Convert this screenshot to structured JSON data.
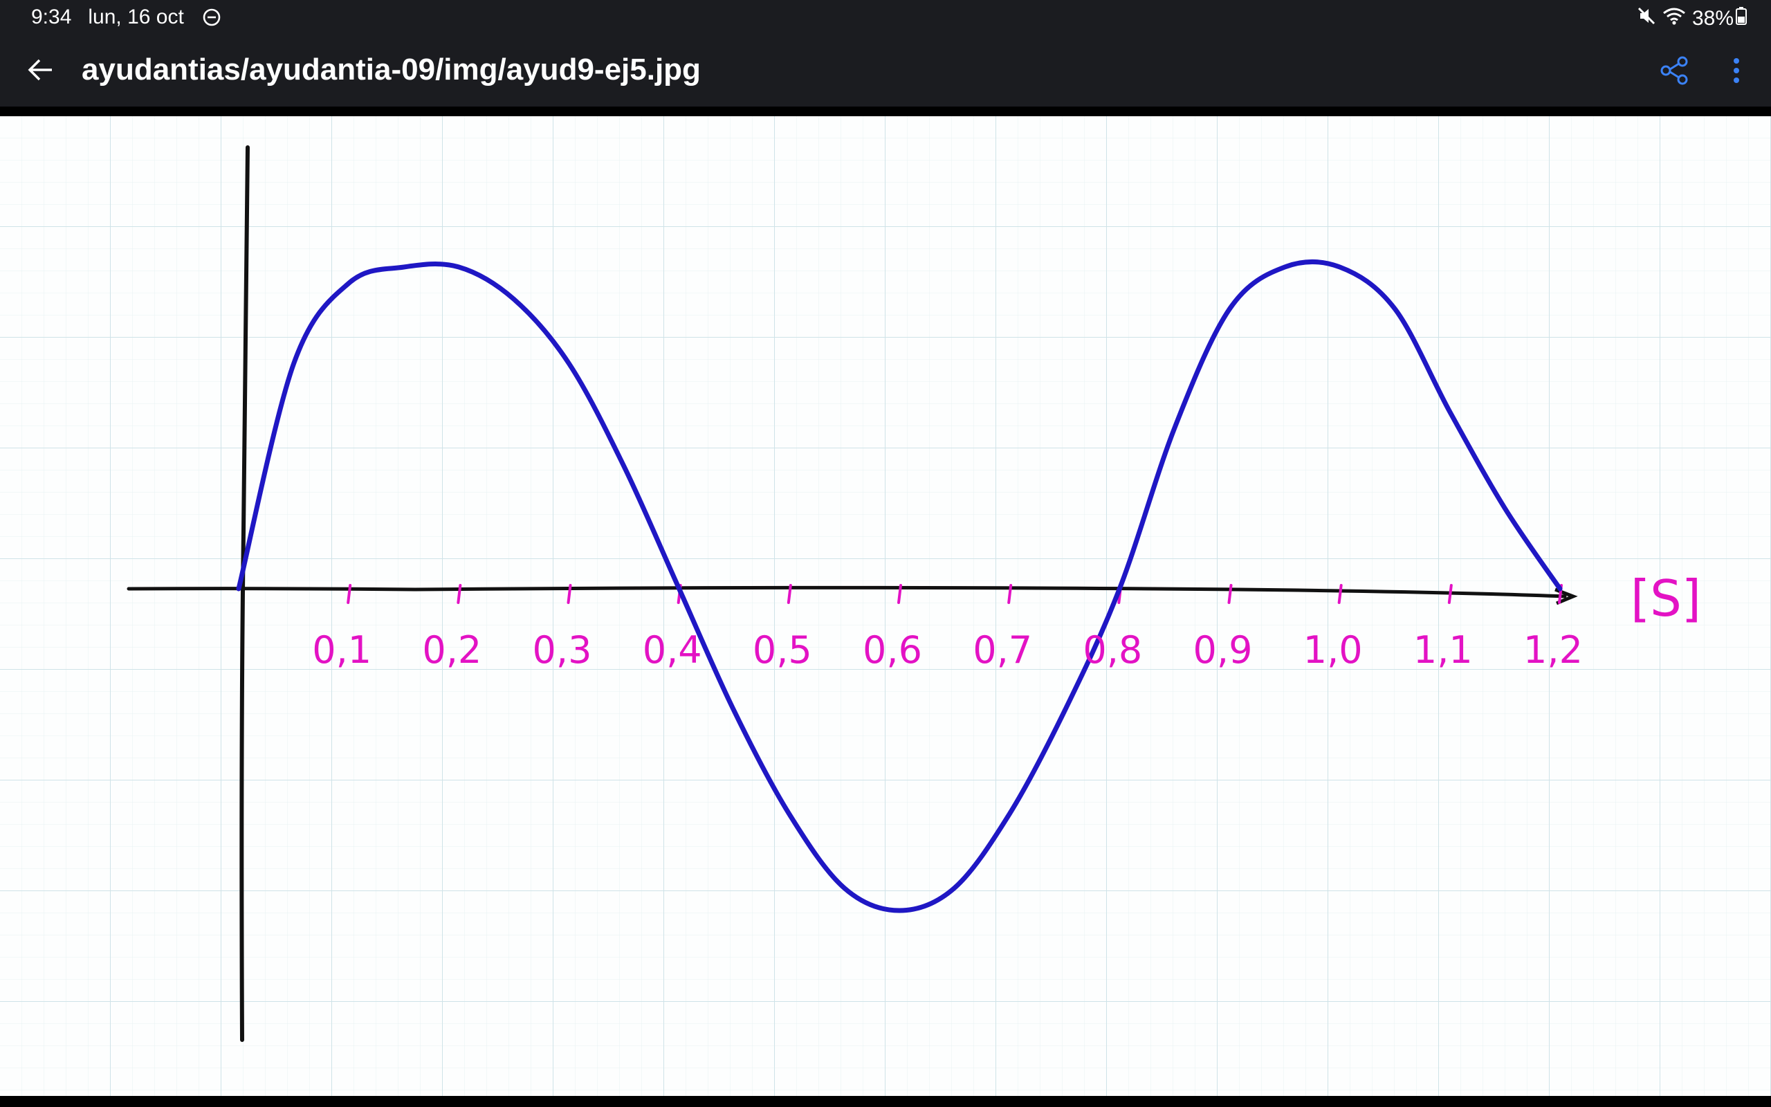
{
  "status_bar": {
    "time": "9:34",
    "date": "lun, 16 oct",
    "battery": "38%",
    "icons": [
      "do-not-disturb-icon",
      "mute-icon",
      "wifi-icon",
      "battery-icon"
    ]
  },
  "app_bar": {
    "title": "ayudantias/ayudantia-09/img/ayud9-ej5.jpg",
    "icons": [
      "back-arrow-icon",
      "share-icon",
      "more-vert-icon"
    ]
  },
  "colors": {
    "bar_background": "#1b1c20",
    "accent": "#3b82f6",
    "grid_paper": "#fdfefe",
    "grid_lines": "#d8e8ec",
    "axis": "#111111",
    "curve": "#1f17c4",
    "labels": "#e312c4"
  },
  "chart_data": {
    "type": "line",
    "title": "",
    "xlabel": "[S]",
    "ylabel": "",
    "xlim": [
      0,
      1.2
    ],
    "x_tick_labels": [
      "0,1",
      "0,2",
      "0,3",
      "0,4",
      "0,5",
      "0,6",
      "0,7",
      "0,8",
      "0,9",
      "1,0",
      "1,1",
      "1,2"
    ],
    "x_ticks": [
      0.1,
      0.2,
      0.3,
      0.4,
      0.5,
      0.6,
      0.7,
      0.8,
      0.9,
      1.0,
      1.1,
      1.2
    ],
    "series": [
      {
        "x": [
          0,
          0.05,
          0.1,
          0.15,
          0.2,
          0.25,
          0.3,
          0.35,
          0.4,
          0.45,
          0.5,
          0.55,
          0.6,
          0.65,
          0.7,
          0.75,
          0.8,
          0.85,
          0.9,
          0.95,
          1.0,
          1.05,
          1.1,
          1.15,
          1.2
        ],
        "y": [
          0,
          0.7,
          0.95,
          1.0,
          1.0,
          0.9,
          0.7,
          0.38,
          0,
          -0.38,
          -0.7,
          -0.93,
          -1.0,
          -0.93,
          -0.7,
          -0.38,
          0,
          0.5,
          0.87,
          1.0,
          1.0,
          0.87,
          0.55,
          0.25,
          0
        ]
      }
    ],
    "grid": true,
    "note_style": "handwritten"
  }
}
